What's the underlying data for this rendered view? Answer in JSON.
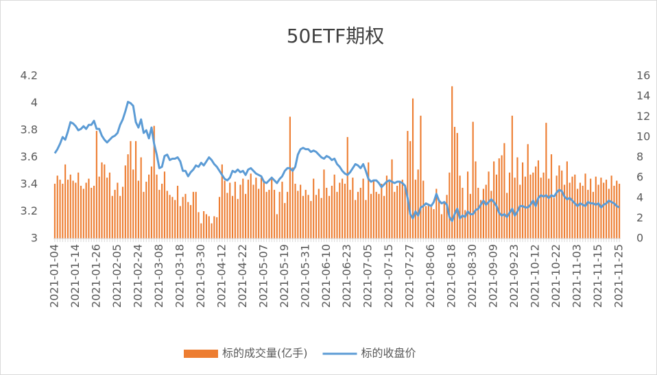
{
  "chart_data": {
    "type": "combo",
    "title": "50ETF期权",
    "categories": [
      "2021-01-04",
      null,
      null,
      null,
      null,
      null,
      null,
      null,
      "2021-01-14",
      null,
      null,
      null,
      null,
      null,
      null,
      null,
      "2021-01-26",
      null,
      null,
      null,
      null,
      null,
      null,
      null,
      "2021-02-05",
      null,
      null,
      null,
      null,
      null,
      null,
      null,
      "2021-02-24",
      null,
      null,
      null,
      null,
      null,
      null,
      null,
      "2021-03-08",
      null,
      null,
      null,
      null,
      null,
      null,
      null,
      "2021-03-18",
      null,
      null,
      null,
      null,
      null,
      null,
      null,
      "2021-03-30",
      null,
      null,
      null,
      null,
      null,
      null,
      null,
      "2021-04-12",
      null,
      null,
      null,
      null,
      null,
      null,
      null,
      "2021-04-22",
      null,
      null,
      null,
      null,
      null,
      null,
      null,
      "2021-05-07",
      null,
      null,
      null,
      null,
      null,
      null,
      null,
      "2021-05-19",
      null,
      null,
      null,
      null,
      null,
      null,
      null,
      "2021-05-31",
      null,
      null,
      null,
      null,
      null,
      null,
      null,
      "2021-06-10",
      null,
      null,
      null,
      null,
      null,
      null,
      null,
      "2021-06-23",
      null,
      null,
      null,
      null,
      null,
      null,
      null,
      "2021-07-05",
      null,
      null,
      null,
      null,
      null,
      null,
      null,
      "2021-07-15",
      null,
      null,
      null,
      null,
      null,
      null,
      null,
      "2021-07-27",
      null,
      null,
      null,
      null,
      null,
      null,
      null,
      "2021-08-06",
      null,
      null,
      null,
      null,
      null,
      null,
      null,
      "2021-08-18",
      null,
      null,
      null,
      null,
      null,
      null,
      null,
      "2021-08-30",
      null,
      null,
      null,
      null,
      null,
      null,
      null,
      "2021-09-09",
      null,
      null,
      null,
      null,
      null,
      null,
      null,
      "2021-09-23",
      null,
      null,
      null,
      null,
      null,
      null,
      null,
      "2021-10-12",
      null,
      null,
      null,
      null,
      null,
      null,
      null,
      "2021-10-22",
      null,
      null,
      null,
      null,
      null,
      null,
      null,
      "2021-11-03",
      null,
      null,
      null,
      null,
      null,
      null,
      null,
      "2021-11-15",
      null,
      null,
      null,
      null,
      null,
      null,
      null,
      "2021-11-25"
    ],
    "series": [
      {
        "name": "标的成交量(亿手)",
        "type": "bar",
        "axis": "y2",
        "color": "#ED7D31",
        "values": [
          5.4,
          6.2,
          5.8,
          5.4,
          7.3,
          5.8,
          6.3,
          5.7,
          5.5,
          6.5,
          5.2,
          4.9,
          5.5,
          5.9,
          5.0,
          5.2,
          10.6,
          6.1,
          7.5,
          7.3,
          6.0,
          6.5,
          4.2,
          4.8,
          5.5,
          4.2,
          5.1,
          7.2,
          8.3,
          9.6,
          6.8,
          9.6,
          5.7,
          8.0,
          4.6,
          5.6,
          6.3,
          7.1,
          11.1,
          6.3,
          4.8,
          5.4,
          6.6,
          4.7,
          4.3,
          4.1,
          3.8,
          5.2,
          3.2,
          4.1,
          4.4,
          3.6,
          3.3,
          4.6,
          4.6,
          2.6,
          1.5,
          2.7,
          2.4,
          2.2,
          1.5,
          2.2,
          2.1,
          4.1,
          7.3,
          5.7,
          4.5,
          5.5,
          4.2,
          5.6,
          3.9,
          5.3,
          5.9,
          4.4,
          5.8,
          6.4,
          5.3,
          6.0,
          4.9,
          6.0,
          5.7,
          4.6,
          4.8,
          5.9,
          4.8,
          2.4,
          4.6,
          5.6,
          3.5,
          4.6,
          12.0,
          7.0,
          5.4,
          4.7,
          5.3,
          4.2,
          4.8,
          4.3,
          3.7,
          5.9,
          4.3,
          4.9,
          4.0,
          6.8,
          5.0,
          4.2,
          5.2,
          6.3,
          4.6,
          5.5,
          5.9,
          5.4,
          10.0,
          4.8,
          6.0,
          3.8,
          4.6,
          5.0,
          5.9,
          3.8,
          7.5,
          4.4,
          5.7,
          4.6,
          4.4,
          5.4,
          4.2,
          6.2,
          5.6,
          7.8,
          4.6,
          5.2,
          5.6,
          5.8,
          5.1,
          10.6,
          9.6,
          13.8,
          5.8,
          6.8,
          12.1,
          5.7,
          3.2,
          3.3,
          3.1,
          2.9,
          4.9,
          3.7,
          2.4,
          3.6,
          4.3,
          6.5,
          15.0,
          11.0,
          10.4,
          6.2,
          5.0,
          2.8,
          6.6,
          4.4,
          11.5,
          7.6,
          5.0,
          3.8,
          4.9,
          5.3,
          6.6,
          4.7,
          7.6,
          6.3,
          7.9,
          8.2,
          9.4,
          4.5,
          6.5,
          12.1,
          6.0,
          8.0,
          5.3,
          7.5,
          6.1,
          9.3,
          6.3,
          6.5,
          7.1,
          7.7,
          6.0,
          6.5,
          11.4,
          5.9,
          8.3,
          4.0,
          6.2,
          7.2,
          6.7,
          5.3,
          7.6,
          5.5,
          6.1,
          6.3,
          4.9,
          5.5,
          5.2,
          6.4,
          4.8,
          5.9,
          4.6,
          6.1,
          5.3,
          6.0,
          5.5,
          5.8,
          4.9,
          6.2,
          5.2,
          5.7,
          5.4
        ]
      },
      {
        "name": "标的收盘价",
        "type": "line",
        "axis": "y",
        "color": "#5B9BD5",
        "values": [
          3.63,
          3.66,
          3.7,
          3.75,
          3.73,
          3.79,
          3.86,
          3.85,
          3.83,
          3.8,
          3.81,
          3.83,
          3.81,
          3.84,
          3.84,
          3.87,
          3.81,
          3.81,
          3.76,
          3.73,
          3.71,
          3.73,
          3.75,
          3.76,
          3.78,
          3.84,
          3.88,
          3.94,
          4.01,
          4.0,
          3.98,
          3.86,
          3.82,
          3.88,
          3.78,
          3.8,
          3.74,
          3.82,
          3.7,
          3.62,
          3.52,
          3.53,
          3.61,
          3.62,
          3.58,
          3.59,
          3.59,
          3.6,
          3.57,
          3.5,
          3.5,
          3.46,
          3.49,
          3.51,
          3.54,
          3.53,
          3.56,
          3.54,
          3.57,
          3.6,
          3.58,
          3.55,
          3.53,
          3.5,
          3.47,
          3.44,
          3.43,
          3.45,
          3.5,
          3.49,
          3.51,
          3.49,
          3.5,
          3.47,
          3.51,
          3.52,
          3.5,
          3.48,
          3.47,
          3.46,
          3.42,
          3.41,
          3.43,
          3.45,
          3.43,
          3.41,
          3.44,
          3.46,
          3.5,
          3.52,
          3.52,
          3.5,
          3.53,
          3.62,
          3.66,
          3.67,
          3.66,
          3.66,
          3.64,
          3.65,
          3.64,
          3.62,
          3.6,
          3.59,
          3.61,
          3.6,
          3.58,
          3.59,
          3.55,
          3.53,
          3.5,
          3.48,
          3.47,
          3.49,
          3.52,
          3.55,
          3.54,
          3.52,
          3.55,
          3.5,
          3.44,
          3.42,
          3.43,
          3.43,
          3.41,
          3.38,
          3.4,
          3.42,
          3.43,
          3.42,
          3.41,
          3.42,
          3.42,
          3.41,
          3.39,
          3.3,
          3.18,
          3.15,
          3.2,
          3.17,
          3.23,
          3.24,
          3.26,
          3.25,
          3.24,
          3.27,
          3.33,
          3.28,
          3.26,
          3.27,
          3.25,
          3.16,
          3.13,
          3.18,
          3.22,
          3.15,
          3.17,
          3.16,
          3.2,
          3.18,
          3.18,
          3.21,
          3.22,
          3.25,
          3.28,
          3.25,
          3.27,
          3.29,
          3.27,
          3.24,
          3.19,
          3.17,
          3.18,
          3.16,
          3.19,
          3.22,
          3.17,
          3.2,
          3.24,
          3.24,
          3.23,
          3.23,
          3.25,
          3.28,
          3.24,
          3.3,
          3.32,
          3.31,
          3.32,
          3.3,
          3.32,
          3.31,
          3.34,
          3.36,
          3.35,
          3.31,
          3.29,
          3.3,
          3.28,
          3.26,
          3.24,
          3.26,
          3.25,
          3.24,
          3.27,
          3.26,
          3.26,
          3.25,
          3.26,
          3.23,
          3.25,
          3.26,
          3.28,
          3.27,
          3.26,
          3.24,
          3.23
        ]
      }
    ],
    "ylim": [
      3,
      4.2
    ],
    "yticks": [
      3,
      3.2,
      3.4,
      3.6,
      3.8,
      4,
      4.2
    ],
    "y2lim": [
      0,
      16
    ],
    "y2ticks": [
      0,
      2,
      4,
      6,
      8,
      10,
      12,
      14,
      16
    ],
    "legend": "bottom",
    "grid": false
  }
}
